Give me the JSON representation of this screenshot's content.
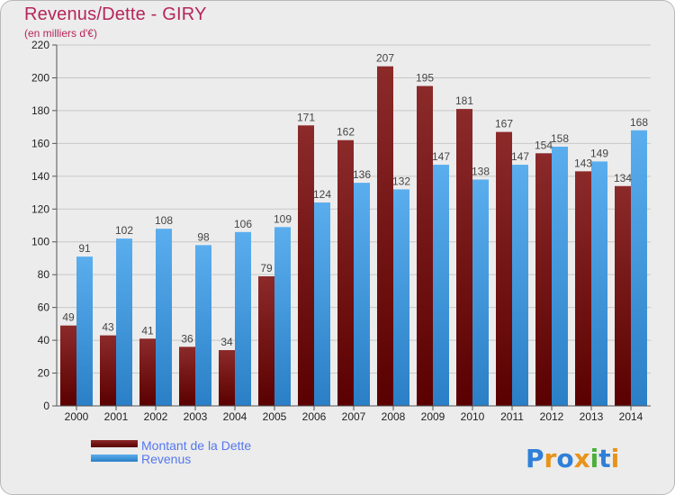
{
  "header": {
    "title": "Revenus/Dette - GIRY",
    "subtitle": "(en milliers d'€)"
  },
  "logo": {
    "letters": [
      "P",
      "r",
      "o",
      "x",
      "i",
      "t",
      "i"
    ]
  },
  "colors": {
    "dette": "#7a1414",
    "revenus": "#3d98e0",
    "logo": [
      "#2f7fd8",
      "#e8931a",
      "#2f7fd8",
      "#e8931a",
      "#4caf3c",
      "#2f7fd8",
      "#e8931a"
    ]
  },
  "chart_data": {
    "type": "bar",
    "title": "Revenus/Dette - GIRY",
    "subtitle": "(en milliers d'€)",
    "categories": [
      "2000",
      "2001",
      "2002",
      "2003",
      "2004",
      "2005",
      "2006",
      "2007",
      "2008",
      "2009",
      "2010",
      "2011",
      "2012",
      "2013",
      "2014"
    ],
    "series": [
      {
        "name": "Montant de la Dette",
        "values": [
          49,
          43,
          41,
          36,
          34,
          79,
          171,
          162,
          207,
          195,
          181,
          167,
          154,
          143,
          134
        ]
      },
      {
        "name": "Revenus",
        "values": [
          91,
          102,
          108,
          98,
          106,
          109,
          124,
          136,
          132,
          147,
          138,
          147,
          158,
          149,
          168
        ]
      }
    ],
    "ylim": [
      0,
      220
    ],
    "yticks": [
      0,
      20,
      40,
      60,
      80,
      100,
      120,
      140,
      160,
      180,
      200,
      220
    ],
    "grid": true,
    "legend": "bottom-left"
  }
}
